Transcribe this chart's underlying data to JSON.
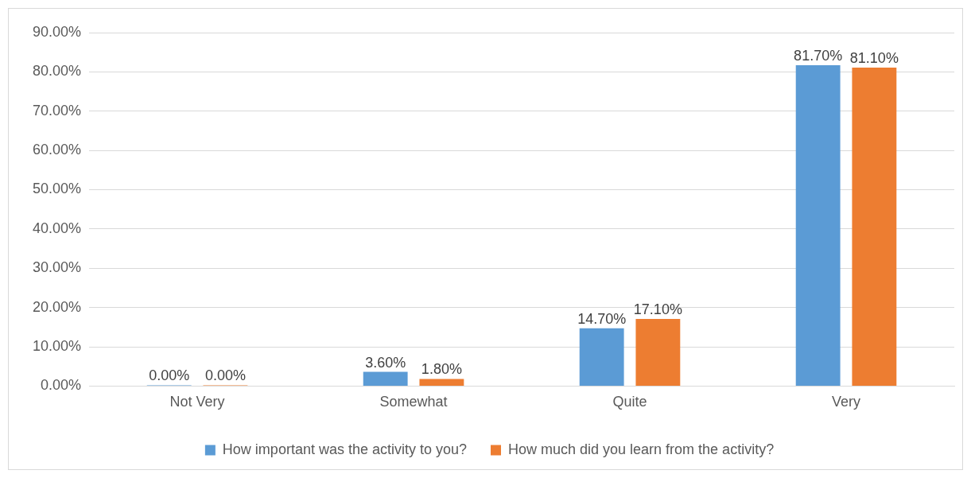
{
  "chart_data": {
    "type": "bar",
    "categories": [
      "Not Very",
      "Somewhat",
      "Quite",
      "Very"
    ],
    "series": [
      {
        "name": "How important was the activity to you?",
        "color": "#5b9bd5",
        "values": [
          0,
          3.6,
          14.7,
          81.7
        ],
        "value_labels": [
          "0.00%",
          "3.60%",
          "14.70%",
          "81.70%"
        ]
      },
      {
        "name": "How much did you learn from the activity?",
        "color": "#ed7d31",
        "values": [
          0,
          1.8,
          17.1,
          81.1
        ],
        "value_labels": [
          "0.00%",
          "1.80%",
          "17.10%",
          "81.10%"
        ]
      }
    ],
    "ylim": [
      0,
      90
    ],
    "yticks": [
      {
        "value": 0,
        "label": "0.00%"
      },
      {
        "value": 10,
        "label": "10.00%"
      },
      {
        "value": 20,
        "label": "20.00%"
      },
      {
        "value": 30,
        "label": "30.00%"
      },
      {
        "value": 40,
        "label": "40.00%"
      },
      {
        "value": 50,
        "label": "50.00%"
      },
      {
        "value": 60,
        "label": "60.00%"
      },
      {
        "value": 70,
        "label": "70.00%"
      },
      {
        "value": 80,
        "label": "80.00%"
      },
      {
        "value": 90,
        "label": "90.00%"
      }
    ],
    "grid": "y",
    "legend": "bottom"
  }
}
